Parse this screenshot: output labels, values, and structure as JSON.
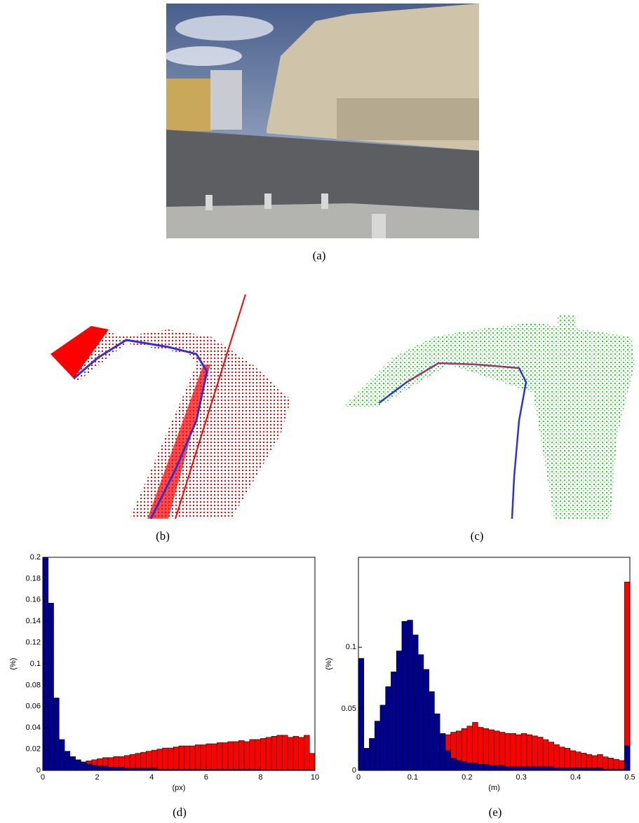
{
  "captions": [
    "(a)",
    "(b)",
    "(c)"
  ],
  "chart_data": [
    {
      "type": "histogram",
      "caption": "(d)",
      "xlabel": "(px)",
      "ylabel": "(%)",
      "xlim": [
        0,
        10
      ],
      "ylim": [
        0,
        0.2
      ],
      "xticks": [
        0,
        2,
        4,
        6,
        8,
        10
      ],
      "yticks": [
        0,
        0.02,
        0.04,
        0.06,
        0.08,
        0.1,
        0.12,
        0.14,
        0.16,
        0.18,
        0.2
      ],
      "bins": [
        0,
        0.2,
        0.4,
        0.6,
        0.8,
        1,
        1.2,
        1.4,
        1.6,
        1.8,
        2,
        2.2,
        2.4,
        2.6,
        2.8,
        3,
        3.2,
        3.4,
        3.6,
        3.8,
        4,
        4.2,
        4.4,
        4.6,
        4.8,
        5,
        5.2,
        5.4,
        5.6,
        5.8,
        6,
        6.2,
        6.4,
        6.6,
        6.8,
        7,
        7.2,
        7.4,
        7.6,
        7.8,
        8,
        8.2,
        8.4,
        8.6,
        8.8,
        9,
        9.2,
        9.4,
        9.6,
        9.8,
        10
      ],
      "series": [
        {
          "color": "#ff0000",
          "values": [
            0.001,
            0.002,
            0.003,
            0.004,
            0.005,
            0.006,
            0.007,
            0.008,
            0.009,
            0.01,
            0.011,
            0.012,
            0.012,
            0.013,
            0.013,
            0.014,
            0.015,
            0.016,
            0.017,
            0.018,
            0.019,
            0.02,
            0.021,
            0.021,
            0.022,
            0.023,
            0.023,
            0.023,
            0.024,
            0.024,
            0.025,
            0.025,
            0.026,
            0.026,
            0.027,
            0.027,
            0.028,
            0.027,
            0.029,
            0.029,
            0.03,
            0.031,
            0.032,
            0.033,
            0.033,
            0.031,
            0.032,
            0.031,
            0.033,
            0.016
          ]
        },
        {
          "color": "#00008f",
          "values": [
            0.2,
            0.157,
            0.068,
            0.029,
            0.018,
            0.013,
            0.01,
            0.008,
            0.006,
            0.005,
            0.004,
            0.004,
            0.003,
            0.003,
            0.003,
            0.002,
            0.002,
            0.002,
            0.002,
            0.002,
            0.002,
            0.001,
            0.001,
            0.001,
            0.001,
            0.001,
            0.001,
            0.001,
            0.001,
            0.001,
            0.001,
            0.001,
            0.001,
            0.001,
            0.001,
            0.001,
            0.001,
            0.001,
            0.001,
            0.001,
            0.0005,
            0.0005,
            0.0005,
            0.0005,
            0.0005,
            0.0005,
            0.0005,
            0.0005,
            0.0005,
            0.0005
          ]
        }
      ]
    },
    {
      "type": "histogram",
      "caption": "(e)",
      "xlabel": "(m)",
      "ylabel": "(%)",
      "xlim": [
        0,
        0.5
      ],
      "ylim": [
        0,
        0.173
      ],
      "xticks": [
        0,
        0.1,
        0.2,
        0.3,
        0.4,
        0.5
      ],
      "yticks": [
        0,
        0.05,
        0.1
      ],
      "bins": [
        0,
        0.01,
        0.02,
        0.03,
        0.04,
        0.05,
        0.06,
        0.07,
        0.08,
        0.09,
        0.1,
        0.11,
        0.12,
        0.13,
        0.14,
        0.15,
        0.16,
        0.17,
        0.18,
        0.19,
        0.2,
        0.21,
        0.22,
        0.23,
        0.24,
        0.25,
        0.26,
        0.27,
        0.28,
        0.29,
        0.3,
        0.31,
        0.32,
        0.33,
        0.34,
        0.35,
        0.36,
        0.37,
        0.38,
        0.39,
        0.4,
        0.41,
        0.42,
        0.43,
        0.44,
        0.45,
        0.46,
        0.47,
        0.48,
        0.49,
        0.5
      ],
      "series": [
        {
          "color": "#ff0000",
          "values": [
            0.001,
            0.002,
            0.003,
            0.004,
            0.005,
            0.006,
            0.008,
            0.01,
            0.012,
            0.014,
            0.016,
            0.019,
            0.023,
            0.027,
            0.028,
            0.03,
            0.029,
            0.031,
            0.032,
            0.034,
            0.036,
            0.039,
            0.035,
            0.034,
            0.033,
            0.032,
            0.031,
            0.03,
            0.03,
            0.029,
            0.03,
            0.029,
            0.028,
            0.027,
            0.025,
            0.023,
            0.021,
            0.019,
            0.018,
            0.016,
            0.015,
            0.014,
            0.013,
            0.012,
            0.013,
            0.011,
            0.01,
            0.009,
            0.008,
            0.153
          ]
        },
        {
          "color": "#00008f",
          "values": [
            0.091,
            0.018,
            0.026,
            0.04,
            0.053,
            0.068,
            0.08,
            0.097,
            0.121,
            0.122,
            0.11,
            0.094,
            0.082,
            0.064,
            0.046,
            0.03,
            0.016,
            0.01,
            0.008,
            0.007,
            0.006,
            0.006,
            0.005,
            0.005,
            0.004,
            0.004,
            0.004,
            0.003,
            0.003,
            0.003,
            0.003,
            0.003,
            0.003,
            0.003,
            0.003,
            0.003,
            0.002,
            0.002,
            0.002,
            0.002,
            0.002,
            0.002,
            0.002,
            0.002,
            0.002,
            0.001,
            0.001,
            0.001,
            0.001,
            0.02
          ]
        }
      ]
    }
  ]
}
